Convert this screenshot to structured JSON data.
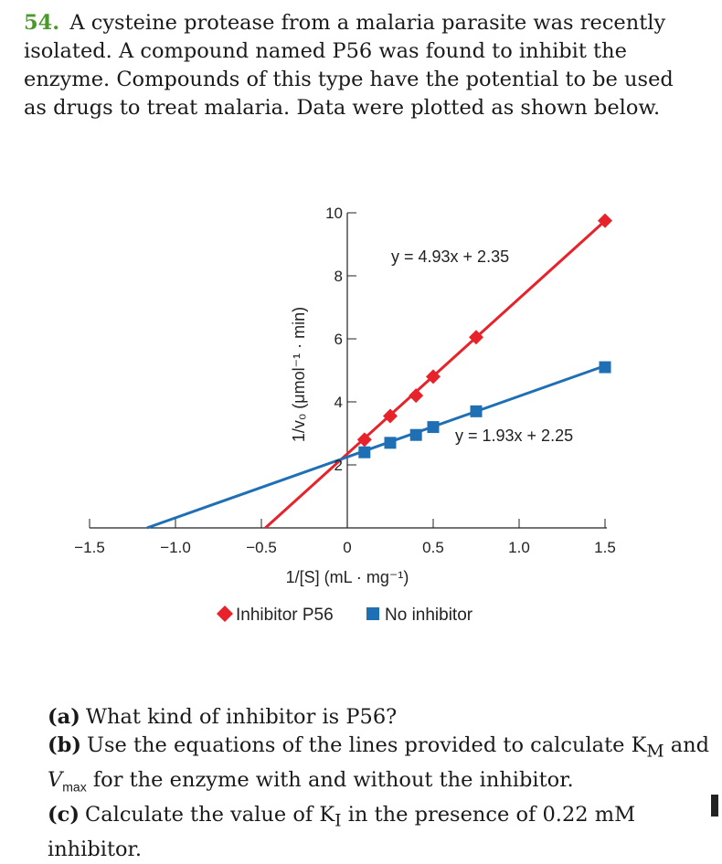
{
  "question": {
    "number": "54.",
    "text": "A cysteine protease from a malaria parasite was recently isolated. A compound named P56 was found to inhibit the enzyme. Compounds of this type have the potential to be used as drugs to treat malaria. Data were plotted as shown below."
  },
  "chart_data": {
    "type": "line",
    "title": "",
    "xlabel": "1/[S] (mL · mg⁻¹)",
    "ylabel": "1/v₀ (μmol⁻¹ · min)",
    "xlim": [
      -1.5,
      1.5
    ],
    "ylim": [
      0,
      10
    ],
    "x_ticks": [
      "−1.5",
      "−1.0",
      "−0.5",
      "0",
      "0.5",
      "1.0",
      "1.5"
    ],
    "y_ticks": [
      "2",
      "4",
      "6",
      "8",
      "10"
    ],
    "series": [
      {
        "name": "Inhibitor P56",
        "color": "#e8222b",
        "marker": "diamond",
        "equation": "y = 4.93x + 2.35",
        "slope": 4.93,
        "intercept": 2.35,
        "x": [
          0.1,
          0.25,
          0.4,
          0.5,
          0.75,
          1.5
        ],
        "y": [
          2.8,
          3.55,
          4.2,
          4.8,
          6.05,
          9.75
        ]
      },
      {
        "name": "No inhibitor",
        "color": "#1f6fb5",
        "marker": "square",
        "equation": "y = 1.93x + 2.25",
        "slope": 1.93,
        "intercept": 2.25,
        "x": [
          0.1,
          0.25,
          0.4,
          0.5,
          0.75,
          1.5
        ],
        "y": [
          2.4,
          2.7,
          2.95,
          3.2,
          3.7,
          5.1
        ]
      }
    ],
    "legend": [
      "Inhibitor P56",
      "No inhibitor"
    ]
  },
  "subquestions": [
    {
      "letter": "(a)",
      "text": "What kind of inhibitor is P56?"
    },
    {
      "letter": "(b)",
      "text": "Use the equations of the lines provided to calculate K",
      "sub": "M",
      "text2": " and"
    },
    {
      "letter": "",
      "pre": "V",
      "sub": "max",
      "text": " for the enzyme with and without the inhibitor."
    },
    {
      "letter": "(c)",
      "text": "Calculate the value of K",
      "sub": "I",
      "text2": " in the presence of 0.22 mM"
    },
    {
      "letter": "",
      "text": "inhibitor."
    }
  ]
}
